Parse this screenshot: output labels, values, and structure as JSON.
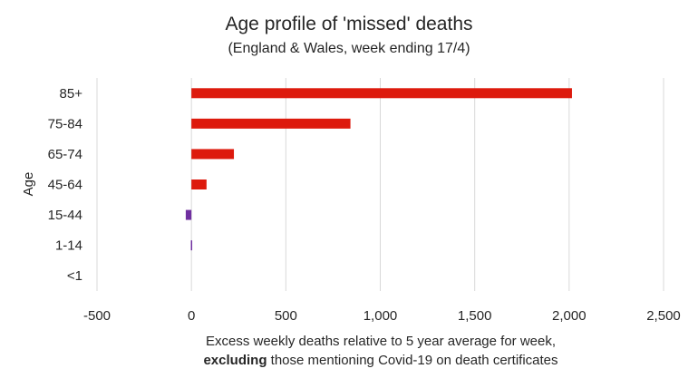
{
  "chart_data": {
    "type": "bar",
    "orientation": "horizontal",
    "title": "Age profile of 'missed' deaths",
    "subtitle": "(England & Wales, week ending 17/4)",
    "ylabel": "Age",
    "xlabel_line1": "Excess weekly deaths relative to 5 year average for week,",
    "xlabel_line2_bold": "excluding",
    "xlabel_line2_rest": " those mentioning Covid-19 on death certificates",
    "categories": [
      "85+",
      "75-84",
      "65-74",
      "45-64",
      "15-44",
      "1-14",
      "<1"
    ],
    "values": [
      2015,
      842,
      225,
      80,
      -30,
      -3,
      0
    ],
    "xlim": [
      -500,
      2500
    ],
    "xticks": [
      -500,
      0,
      500,
      1000,
      1500,
      2000,
      2500
    ],
    "xtick_labels": [
      "-500",
      "0",
      "500",
      "1,000",
      "1,500",
      "2,000",
      "2,500"
    ],
    "grid": "vertical",
    "colors": {
      "positive": "#dd1a0d",
      "negative": "#7030a0",
      "grid": "#d9d9d9"
    }
  }
}
